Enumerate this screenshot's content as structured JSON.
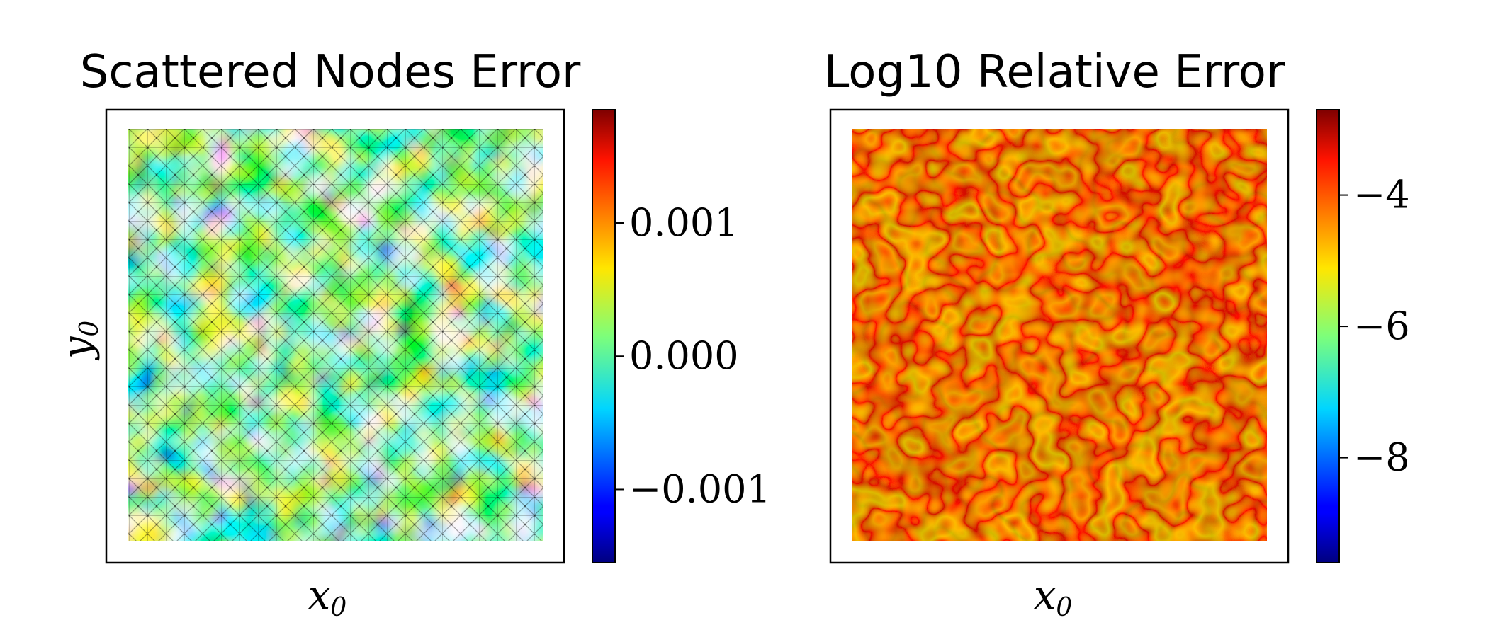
{
  "chart_data": [
    {
      "type": "heatmap",
      "title": "Scattered Nodes Error",
      "xlabel": "x",
      "xlabel_sub": "0",
      "ylabel": "y",
      "ylabel_sub": "0",
      "colormap": "jet",
      "colorbar_range": [
        -0.00155,
        0.00185
      ],
      "colorbar_ticks": [
        {
          "value": 0.001,
          "label": "0.001"
        },
        {
          "value": 0.0,
          "label": "0.000"
        },
        {
          "value": -0.001,
          "label": "−0.001"
        }
      ],
      "overlay": "triangulated mesh of scattered nodes",
      "grid": false
    },
    {
      "type": "heatmap",
      "title": "Log10 Relative Error",
      "xlabel": "x",
      "xlabel_sub": "0",
      "colormap": "jet",
      "colorbar_range": [
        -9.6,
        -2.7
      ],
      "colorbar_ticks": [
        {
          "value": -4,
          "label": "−4"
        },
        {
          "value": -6,
          "label": "−6"
        },
        {
          "value": -8,
          "label": "−8"
        }
      ],
      "grid": false
    }
  ]
}
